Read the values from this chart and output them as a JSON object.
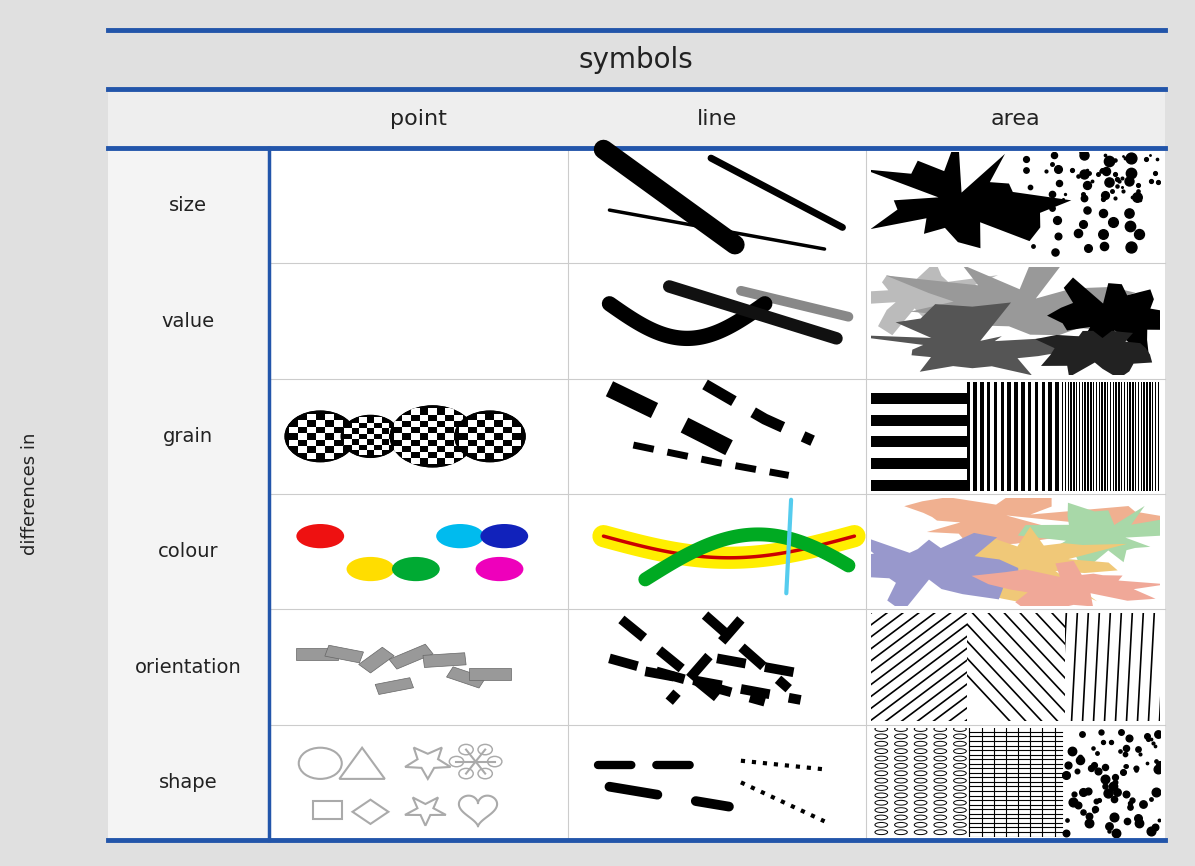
{
  "title": "symbols",
  "col_headers": [
    "point",
    "line",
    "area"
  ],
  "row_labels": [
    "size",
    "value",
    "grain",
    "colour",
    "orientation",
    "shape"
  ],
  "bg_color": "#e0e0e0",
  "cell_bg": "#ffffff",
  "blue_line": "#2255aa",
  "text_color": "#222222",
  "fig_width": 11.95,
  "fig_height": 8.66
}
